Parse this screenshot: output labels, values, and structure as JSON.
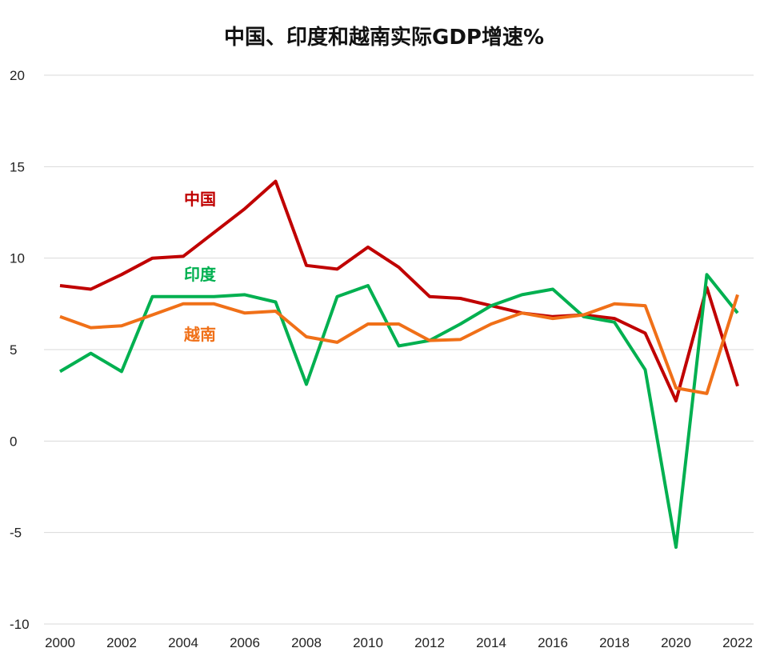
{
  "chart_data": {
    "type": "line",
    "title": "中国、印度和越南实际GDP增速%",
    "xlabel": "",
    "ylabel": "",
    "ylim": [
      -10,
      20
    ],
    "yticks": [
      -10,
      -5,
      0,
      5,
      10,
      15,
      20
    ],
    "xticks": [
      2000,
      2002,
      2004,
      2006,
      2008,
      2010,
      2012,
      2014,
      2016,
      2018,
      2020,
      2022
    ],
    "grid": "horizontal",
    "x": [
      2000,
      2001,
      2002,
      2003,
      2004,
      2005,
      2006,
      2007,
      2008,
      2009,
      2010,
      2011,
      2012,
      2013,
      2014,
      2015,
      2016,
      2017,
      2018,
      2019,
      2020,
      2021,
      2022
    ],
    "series": [
      {
        "name": "中国",
        "color": "#c00000",
        "values": [
          8.5,
          8.3,
          9.1,
          10.0,
          10.1,
          11.4,
          12.7,
          14.2,
          9.6,
          9.4,
          10.6,
          9.5,
          7.9,
          7.8,
          7.4,
          7.0,
          6.8,
          6.9,
          6.7,
          5.9,
          2.2,
          8.4,
          3.0
        ]
      },
      {
        "name": "印度",
        "color": "#00b050",
        "values": [
          3.8,
          4.8,
          3.8,
          7.9,
          7.9,
          7.9,
          8.0,
          7.6,
          3.1,
          7.9,
          8.5,
          5.2,
          5.5,
          6.4,
          7.4,
          8.0,
          8.3,
          6.8,
          6.5,
          3.9,
          -5.8,
          9.1,
          7.0
        ]
      },
      {
        "name": "越南",
        "color": "#f07018",
        "values": [
          6.8,
          6.2,
          6.3,
          6.9,
          7.5,
          7.5,
          7.0,
          7.1,
          5.7,
          5.4,
          6.4,
          6.4,
          5.5,
          5.55,
          6.4,
          7.0,
          6.7,
          6.9,
          7.5,
          7.4,
          2.9,
          2.6,
          8.0
        ]
      }
    ]
  }
}
